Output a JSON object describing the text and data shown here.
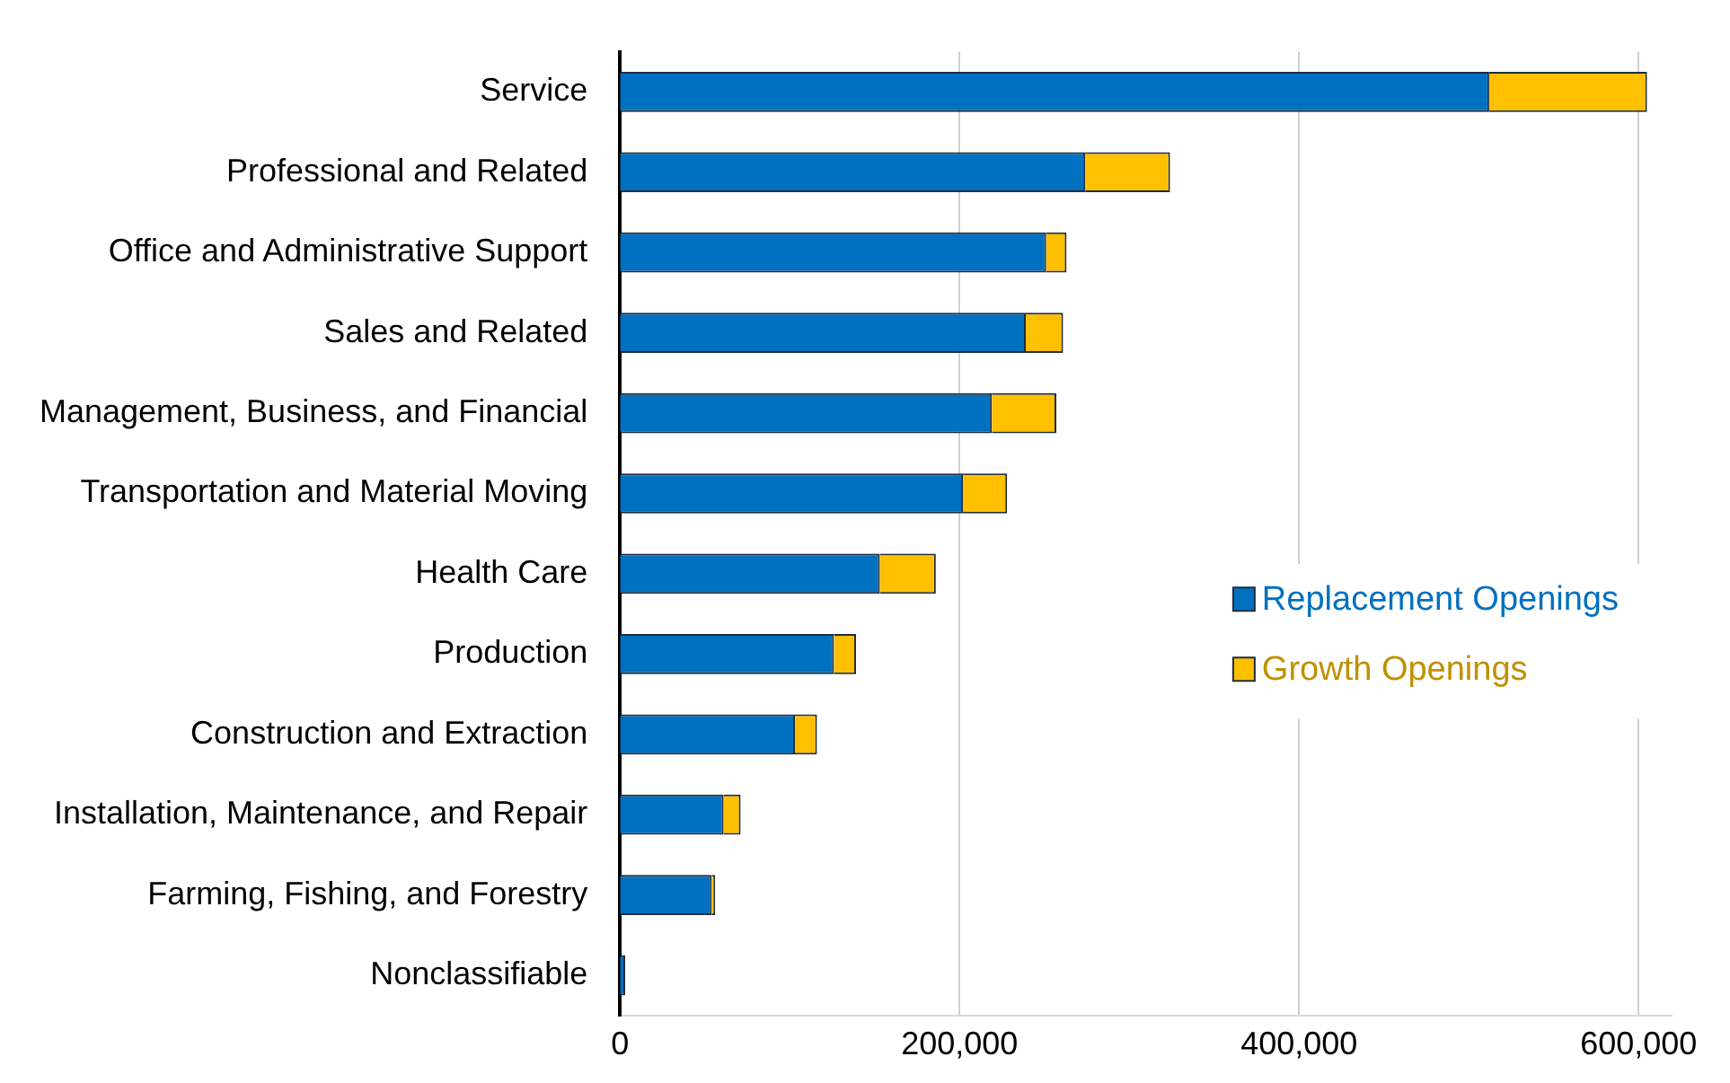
{
  "chart_data": {
    "type": "bar",
    "orientation": "horizontal",
    "stacked": true,
    "categories": [
      "Service",
      "Professional and Related",
      "Office and Administrative Support",
      "Sales and Related",
      "Management, Business, and Financial",
      "Transportation and Material Moving",
      "Health Care",
      "Production",
      "Construction and Extraction",
      "Installation, Maintenance, and Repair",
      "Farming, Fishing, and Forestry",
      "Nonclassifiable"
    ],
    "series": [
      {
        "name": "Replacement Openings",
        "color": "#0070c0",
        "values": [
          512000,
          274000,
          251000,
          239000,
          219000,
          202000,
          153000,
          126000,
          103000,
          61000,
          54000,
          3000
        ]
      },
      {
        "name": "Growth Openings",
        "color": "#ffc000",
        "values": [
          93000,
          50000,
          12000,
          22000,
          38000,
          26000,
          33000,
          13000,
          13000,
          10000,
          2000,
          0
        ]
      }
    ],
    "xlim": [
      0,
      620000
    ],
    "xticks": [
      0,
      {
        "value": 200000,
        "label": "200,000"
      },
      {
        "value": 400000,
        "label": "400,000"
      },
      {
        "value": 600000,
        "label": "600,000"
      }
    ],
    "grid": "x",
    "legend": "right"
  }
}
